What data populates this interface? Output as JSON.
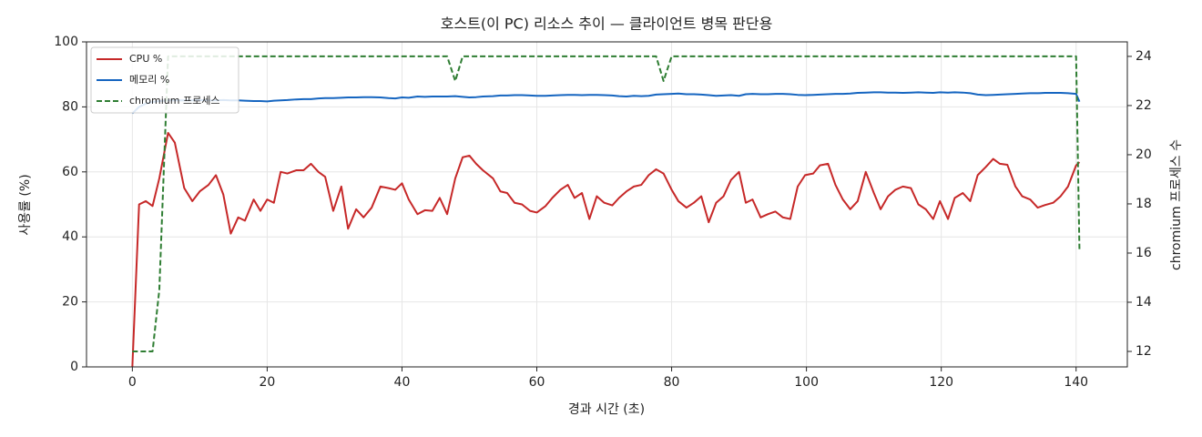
{
  "chart_data": {
    "type": "line",
    "title": "호스트(이 PC) 리소스 추이 — 클라이언트 병목 판단용",
    "xlabel": "경과 시간 (초)",
    "ylabel": "사용률 (%)",
    "y2label": "chromium 프로세스 수",
    "x": [
      0,
      1,
      2,
      3,
      4,
      5.3,
      6.3,
      7.7,
      8.9,
      10,
      11.3,
      12.4,
      13.5,
      14.6,
      15.7,
      16.7,
      18,
      19,
      20,
      21,
      22,
      23,
      24.3,
      25.4,
      26.5,
      27.6,
      28.6,
      29.8,
      31,
      32,
      33.2,
      34.3,
      35.5,
      36.8,
      38,
      39,
      40,
      41,
      42.3,
      43.4,
      44.5,
      45.6,
      46.7,
      47.9,
      49,
      50,
      51,
      52,
      53.5,
      54.6,
      55.6,
      56.7,
      57.8,
      59,
      60,
      61.3,
      62.3,
      63.5,
      64.6,
      65.6,
      66.7,
      67.8,
      68.9,
      70,
      71.2,
      72.2,
      73.3,
      74.4,
      75.5,
      76.6,
      77.7,
      78.8,
      80,
      81,
      82.2,
      83.3,
      84.4,
      85.5,
      86.6,
      87.7,
      88.8,
      90,
      91,
      92,
      93.2,
      94.3,
      95.4,
      96.5,
      97.6,
      98.7,
      99.8,
      101,
      102,
      103.2,
      104.3,
      105.4,
      106.5,
      107.6,
      108.8,
      110,
      111,
      112.1,
      113.2,
      114.3,
      115.5,
      116.6,
      117.7,
      118.8,
      119.8,
      121,
      122,
      123.2,
      124.3,
      125.4,
      126.6,
      127.7,
      128.7,
      129.8,
      131,
      132,
      133.2,
      134.3,
      135.4,
      136.6,
      137.7,
      138.8,
      140,
      140.5
    ],
    "series": [
      {
        "name": "CPU %",
        "color": "#c62828",
        "linestyle": "solid",
        "axis": "y",
        "values": [
          0,
          50,
          51,
          49.5,
          58,
          72,
          69,
          55,
          51,
          54,
          56,
          59,
          53,
          41,
          46,
          45,
          51.5,
          48,
          51.5,
          50.5,
          60,
          59.5,
          60.5,
          60.5,
          62.5,
          60,
          58.5,
          48,
          55.5,
          42.5,
          48.5,
          46,
          49,
          55.5,
          55,
          54.5,
          56.5,
          51.5,
          47,
          48.2,
          48,
          52,
          47,
          58,
          64.5,
          65,
          62.5,
          60.5,
          58,
          54,
          53.5,
          50.5,
          50,
          48,
          47.5,
          49.5,
          52,
          54.5,
          56,
          52,
          53.5,
          45.5,
          52.5,
          50.5,
          49.7,
          52,
          54,
          55.5,
          56,
          59,
          60.8,
          59.5,
          54.5,
          51,
          49,
          50.5,
          52.5,
          44.5,
          50.5,
          52.5,
          57.5,
          60,
          50.5,
          51.5,
          46,
          47,
          47.8,
          46,
          45.5,
          55.5,
          59,
          59.5,
          62,
          62.5,
          56,
          51.5,
          48.5,
          51,
          60,
          53.5,
          48.5,
          52.5,
          54.5,
          55.5,
          55,
          50,
          48.5,
          45.5,
          51,
          45.5,
          52,
          53.5,
          51,
          59,
          61.5,
          64,
          62.5,
          62.2,
          55.5,
          52.5,
          51.5,
          49,
          49.8,
          50.5,
          52.5,
          55.5,
          62,
          63
        ]
      },
      {
        "name": "메모리 %",
        "color": "#1565c0",
        "linestyle": "solid",
        "axis": "y",
        "values": [
          78,
          80,
          81,
          81.5,
          81.8,
          82,
          82,
          82,
          82,
          82.1,
          82,
          82,
          82.1,
          82,
          82,
          81.9,
          81.8,
          81.8,
          81.7,
          81.9,
          82,
          82.1,
          82.3,
          82.4,
          82.4,
          82.6,
          82.7,
          82.7,
          82.8,
          82.9,
          82.9,
          83,
          83,
          82.9,
          82.7,
          82.6,
          82.9,
          82.8,
          83.2,
          83.1,
          83.2,
          83.2,
          83.2,
          83.3,
          83.1,
          82.9,
          83,
          83.2,
          83.3,
          83.5,
          83.5,
          83.6,
          83.6,
          83.5,
          83.4,
          83.4,
          83.5,
          83.6,
          83.7,
          83.7,
          83.6,
          83.7,
          83.7,
          83.6,
          83.5,
          83.3,
          83.2,
          83.4,
          83.3,
          83.4,
          83.8,
          83.9,
          84,
          84.1,
          83.9,
          83.9,
          83.8,
          83.6,
          83.4,
          83.5,
          83.6,
          83.4,
          83.9,
          84,
          83.9,
          83.9,
          84,
          84,
          83.9,
          83.7,
          83.6,
          83.7,
          83.8,
          83.9,
          84,
          84,
          84.1,
          84.3,
          84.4,
          84.5,
          84.5,
          84.4,
          84.4,
          84.3,
          84.4,
          84.5,
          84.4,
          84.3,
          84.5,
          84.4,
          84.5,
          84.4,
          84.2,
          83.8,
          83.6,
          83.7,
          83.8,
          83.9,
          84,
          84.1,
          84.2,
          84.2,
          84.3,
          84.3,
          84.3,
          84.2,
          84,
          81.6
        ]
      },
      {
        "name": "chromium 프로세스",
        "color": "#2e7d32",
        "linestyle": "dashed",
        "axis": "y2",
        "values": [
          12,
          12,
          12,
          12,
          14.5,
          24,
          24,
          24,
          24,
          24,
          24,
          24,
          24,
          24,
          24,
          24,
          24,
          24,
          24,
          24,
          24,
          24,
          24,
          24,
          24,
          24,
          24,
          24,
          24,
          24,
          24,
          24,
          24,
          24,
          24,
          24,
          24,
          24,
          24,
          24,
          24,
          24,
          24,
          23,
          24,
          24,
          24,
          24,
          24,
          24,
          24,
          24,
          24,
          24,
          24,
          24,
          24,
          24,
          24,
          24,
          24,
          24,
          24,
          24,
          24,
          24,
          24,
          24,
          24,
          24,
          24,
          23,
          24,
          24,
          24,
          24,
          24,
          24,
          24,
          24,
          24,
          24,
          24,
          24,
          24,
          24,
          24,
          24,
          24,
          24,
          24,
          24,
          24,
          24,
          24,
          24,
          24,
          24,
          24,
          24,
          24,
          24,
          24,
          24,
          24,
          24,
          24,
          24,
          24,
          24,
          24,
          24,
          24,
          24,
          24,
          24,
          24,
          24,
          24,
          24,
          24,
          24,
          24,
          24,
          24,
          24,
          24,
          16.1
        ]
      }
    ],
    "xlim": [
      -6.8,
      147.6
    ],
    "xticks": [
      0,
      20,
      40,
      60,
      80,
      100,
      120,
      140
    ],
    "ylim": [
      0,
      100
    ],
    "yticks": [
      0,
      20,
      40,
      60,
      80,
      100
    ],
    "y2lim": [
      11.37,
      24.59
    ],
    "y2ticks": [
      12,
      14,
      16,
      18,
      20,
      22,
      24
    ],
    "grid": true,
    "legend": "upper-left"
  }
}
